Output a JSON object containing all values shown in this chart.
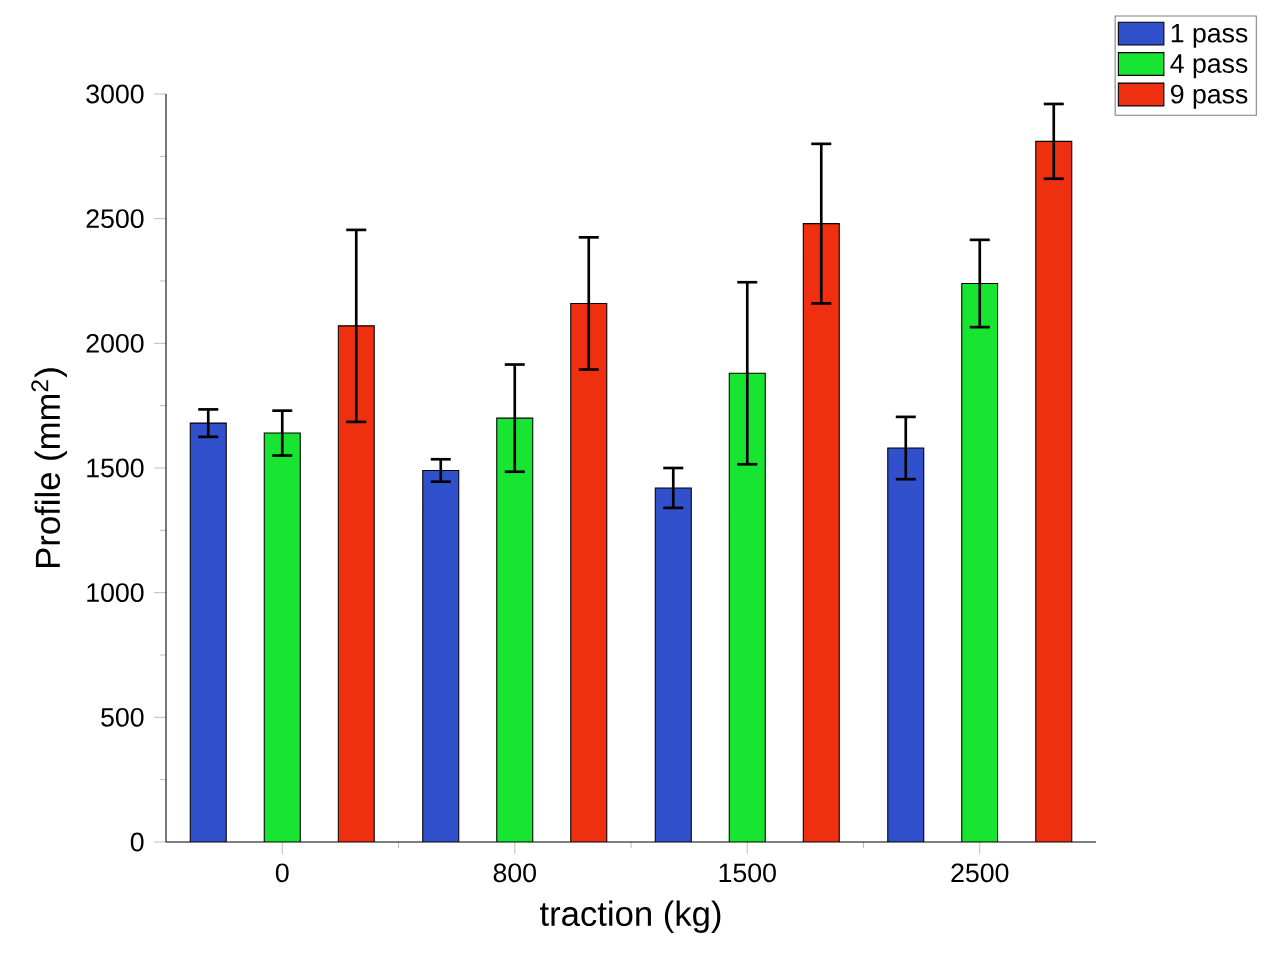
{
  "chart_data": {
    "type": "bar",
    "xlabel": "traction (kg)",
    "ylabel": "Profile (mm$^{2}$)",
    "categories": [
      "0",
      "800",
      "1500",
      "2500"
    ],
    "series": [
      {
        "name": "1 pass",
        "color": "#3050cc",
        "values": [
          1680,
          1490,
          1420,
          1580
        ],
        "errors": [
          55,
          45,
          80,
          125
        ]
      },
      {
        "name": "4 pass",
        "color": "#18e432",
        "values": [
          1640,
          1700,
          1880,
          2240
        ],
        "errors": [
          90,
          215,
          365,
          175
        ]
      },
      {
        "name": "9 pass",
        "color": "#ee3010",
        "values": [
          2070,
          2160,
          2480,
          2810
        ],
        "errors": [
          385,
          265,
          320,
          150
        ]
      }
    ],
    "ylim": [
      0,
      3000
    ],
    "yticks": [
      0,
      500,
      1000,
      1500,
      2000,
      2500,
      3000
    ],
    "legend": "top right"
  }
}
